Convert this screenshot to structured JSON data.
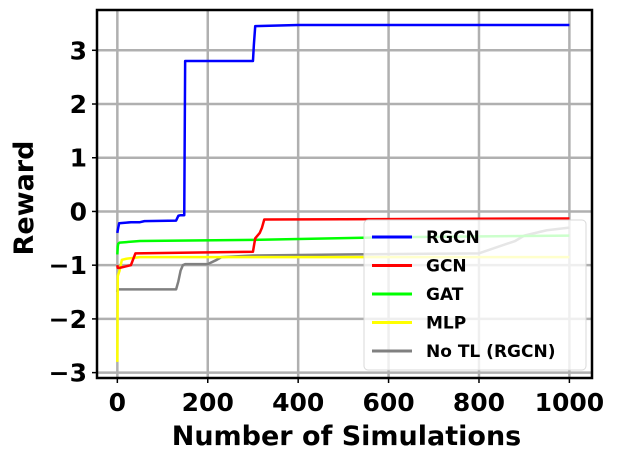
{
  "chart_data": {
    "type": "line",
    "title": "",
    "xlabel": "Number of Simulations",
    "ylabel": "Reward",
    "xlim": [
      -45,
      1050
    ],
    "ylim": [
      -3.1,
      3.75
    ],
    "xticks": [
      0,
      200,
      400,
      600,
      800,
      1000
    ],
    "xtick_labels": [
      "0",
      "200",
      "400",
      "600",
      "800",
      "1000"
    ],
    "yticks": [
      -3,
      -2,
      -1,
      0,
      1,
      2,
      3
    ],
    "ytick_labels": [
      "−3",
      "−2",
      "−1",
      "0",
      "1",
      "2",
      "3"
    ],
    "grid": true,
    "legend_position": "lower right",
    "series": [
      {
        "name": "No TL (RGCN)",
        "color": "#808080",
        "x": [
          0,
          1,
          2,
          5,
          130,
          135,
          140,
          145,
          150,
          200,
          220,
          230,
          300,
          500,
          800,
          880,
          900,
          950,
          1000
        ],
        "y": [
          -1.5,
          -1.43,
          -1.45,
          -1.45,
          -1.45,
          -1.3,
          -1.1,
          -1.0,
          -0.98,
          -0.98,
          -0.9,
          -0.85,
          -0.82,
          -0.8,
          -0.78,
          -0.55,
          -0.45,
          -0.35,
          -0.3
        ]
      },
      {
        "name": "MLP",
        "color": "#ffff00",
        "x": [
          0,
          1,
          3,
          5,
          10,
          20,
          50,
          1000
        ],
        "y": [
          -2.8,
          -1.2,
          -1.15,
          -1.1,
          -0.9,
          -0.88,
          -0.85,
          -0.85
        ]
      },
      {
        "name": "GAT",
        "color": "#00ff00",
        "x": [
          0,
          1,
          2,
          5,
          20,
          50,
          300,
          600,
          1000
        ],
        "y": [
          -0.8,
          -0.65,
          -0.6,
          -0.58,
          -0.57,
          -0.55,
          -0.53,
          -0.48,
          -0.45
        ]
      },
      {
        "name": "GCN",
        "color": "#ff0000",
        "x": [
          0,
          1,
          5,
          30,
          40,
          300,
          305,
          315,
          320,
          325,
          1000
        ],
        "y": [
          -1.0,
          -1.05,
          -1.05,
          -1.0,
          -0.78,
          -0.75,
          -0.5,
          -0.4,
          -0.3,
          -0.15,
          -0.13
        ]
      },
      {
        "name": "RGCN",
        "color": "#0000ff",
        "x": [
          0,
          2,
          4,
          30,
          50,
          60,
          130,
          135,
          140,
          145,
          148,
          150,
          300,
          302,
          305,
          400,
          1000
        ],
        "y": [
          -0.4,
          -0.3,
          -0.22,
          -0.2,
          -0.2,
          -0.18,
          -0.17,
          -0.08,
          -0.07,
          -0.07,
          -0.07,
          2.8,
          2.8,
          3.1,
          3.45,
          3.47,
          3.47
        ]
      }
    ],
    "legend_order": [
      "RGCN",
      "GCN",
      "GAT",
      "MLP",
      "No TL (RGCN)"
    ]
  }
}
